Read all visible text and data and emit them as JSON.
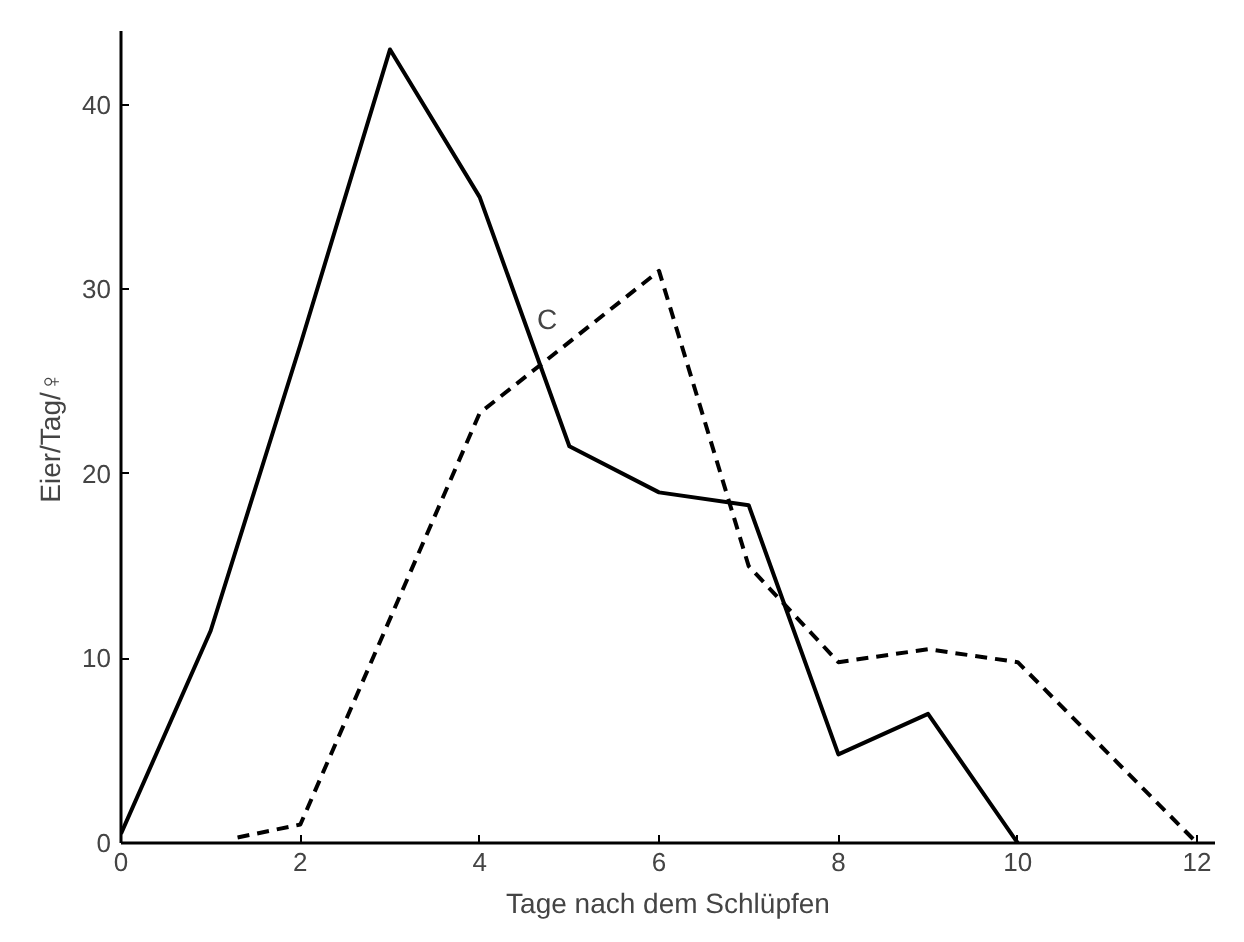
{
  "chart_data": {
    "type": "line",
    "xlabel": "Tage nach dem Schlüpfen",
    "ylabel": "Eier/Tag/♀",
    "xlim": [
      0,
      12.2
    ],
    "ylim": [
      0,
      44
    ],
    "xticks": [
      0,
      2,
      4,
      6,
      8,
      10,
      12
    ],
    "yticks": [
      0,
      10,
      20,
      30,
      40
    ],
    "grid": false,
    "annotations": [
      "C"
    ],
    "series": [
      {
        "color": "#000000",
        "line_style": "solid",
        "x": [
          0,
          1,
          2,
          3,
          4,
          5,
          6,
          7,
          8,
          9,
          10
        ],
        "values": [
          0.5,
          11.5,
          27,
          43,
          35,
          21.5,
          19,
          18.3,
          4.8,
          7,
          0
        ]
      },
      {
        "color": "#000000",
        "line_style": "dashed",
        "x": [
          1.3,
          2,
          4,
          6,
          7,
          8,
          9,
          10,
          12
        ],
        "values": [
          0.3,
          1,
          23.3,
          31,
          15,
          9.8,
          10.5,
          9.8,
          0
        ]
      }
    ]
  }
}
